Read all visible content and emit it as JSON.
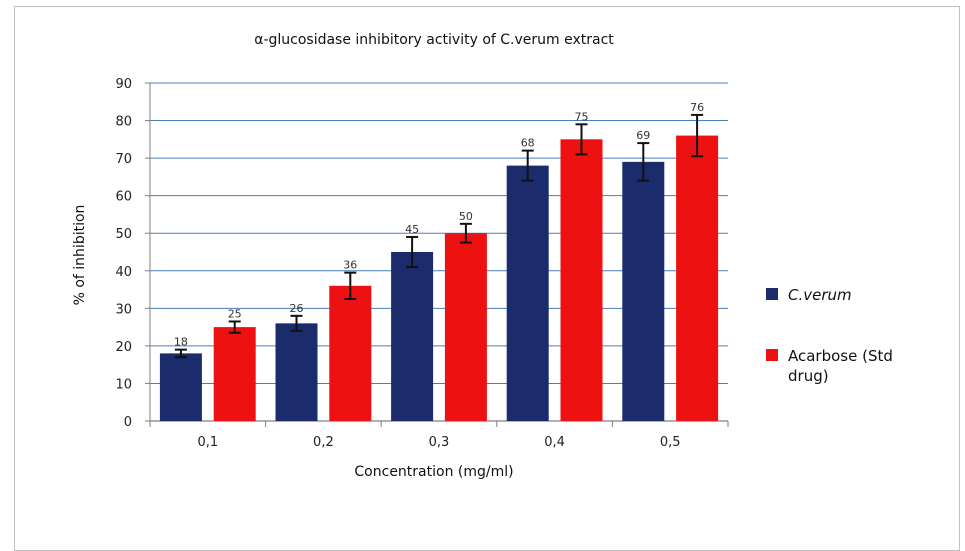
{
  "chart_data": {
    "type": "bar",
    "title": "α-glucosidase inhibitory activity of  C.verum extract",
    "xlabel": "Concentration (mg/ml)",
    "ylabel": "% of inhibition",
    "categories": [
      "0,1",
      "0,2",
      "0,3",
      "0,4",
      "0,5"
    ],
    "ylim": [
      0,
      90
    ],
    "yticks": [
      "0",
      "10",
      "20",
      "30",
      "40",
      "50",
      "60",
      "70",
      "80",
      "90"
    ],
    "grid": true,
    "legend_position": "right",
    "series": [
      {
        "name": "C.verum",
        "color": "#1b2b6b",
        "values": [
          18,
          26,
          45,
          68,
          69
        ],
        "labels": [
          "18",
          "26",
          "45",
          "68",
          "69"
        ],
        "errors": [
          1,
          2,
          4,
          4,
          5
        ]
      },
      {
        "name": "Acarbose (Std drug)",
        "legend_lines": [
          "Acarbose (Std",
          "drug)"
        ],
        "color": "#ee1111",
        "values": [
          25,
          36,
          50,
          75,
          76
        ],
        "labels": [
          "25",
          "36",
          "50",
          "75",
          "76"
        ],
        "errors": [
          1.5,
          3.5,
          2.5,
          4,
          5.5
        ]
      }
    ]
  }
}
